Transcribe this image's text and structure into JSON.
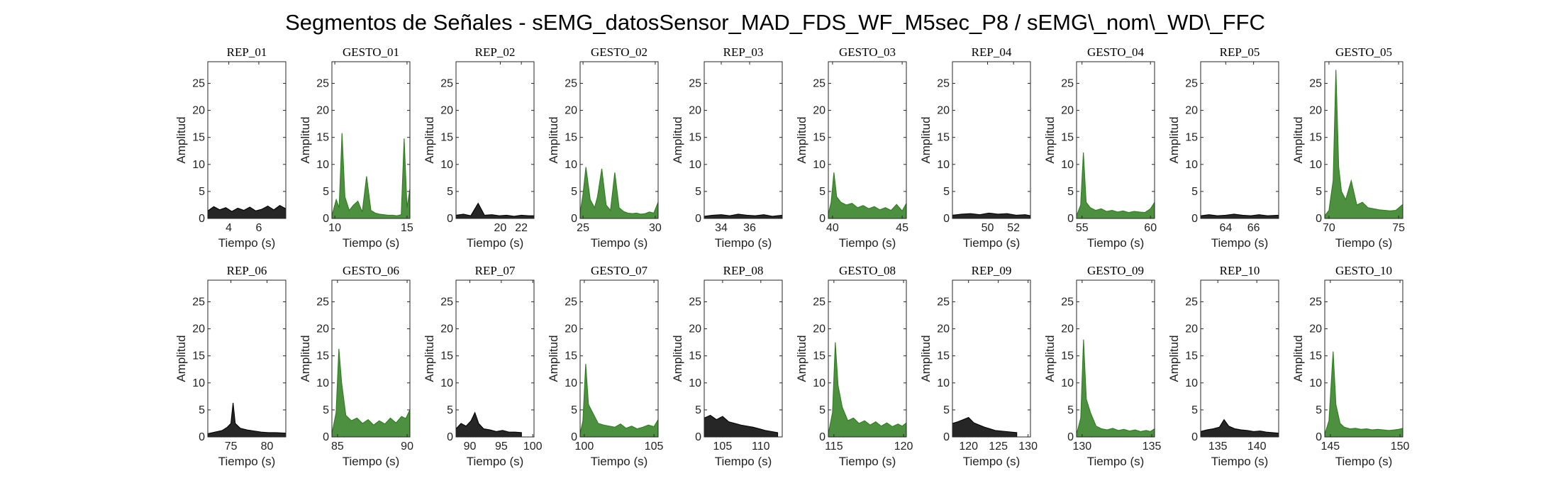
{
  "title": "Segmentos de Señales - sEMG_datosSensor_MAD_FDS_WF_M5sec_P8 / sEMG\\_nom\\_WD\\_FFC",
  "colors": {
    "rep": "#000000",
    "gesto": "#2e7d1e"
  },
  "chart_data": [
    {
      "type": "area",
      "title": "REP_01",
      "kind": "rep",
      "xlabel": "Tiempo (s)",
      "ylabel": "Amplitud",
      "xlim": [
        2.6,
        7.8
      ],
      "xticks": [
        4,
        6
      ],
      "ylim": [
        0,
        29
      ],
      "yticks": [
        0,
        5,
        10,
        15,
        20,
        25
      ],
      "x": [
        2.6,
        3.0,
        3.4,
        3.8,
        4.2,
        4.6,
        5.0,
        5.4,
        5.8,
        6.2,
        6.6,
        7.0,
        7.4,
        7.8
      ],
      "y": [
        1.4,
        2.2,
        1.6,
        2.0,
        1.3,
        1.9,
        1.5,
        2.1,
        1.4,
        1.7,
        2.3,
        1.6,
        2.4,
        1.8
      ]
    },
    {
      "type": "area",
      "title": "GESTO_01",
      "kind": "gesto",
      "xlabel": "Tiempo (s)",
      "ylabel": "Amplitud",
      "xlim": [
        9.8,
        15.2
      ],
      "xticks": [
        10,
        15
      ],
      "ylim": [
        0,
        29
      ],
      "yticks": [
        0,
        5,
        10,
        15,
        20,
        25
      ],
      "x": [
        9.8,
        10.1,
        10.3,
        10.5,
        10.7,
        11.0,
        11.3,
        11.6,
        11.9,
        12.2,
        12.5,
        12.8,
        13.1,
        13.4,
        13.7,
        14.0,
        14.3,
        14.6,
        14.8,
        15.0,
        15.2
      ],
      "y": [
        0.5,
        3.5,
        2.0,
        15.8,
        4.0,
        1.5,
        2.5,
        3.2,
        1.2,
        7.8,
        1.5,
        1.0,
        0.8,
        0.7,
        0.6,
        0.6,
        0.5,
        0.7,
        14.8,
        2.0,
        5.5
      ]
    },
    {
      "type": "area",
      "title": "REP_02",
      "kind": "rep",
      "xlabel": "Tiempo (s)",
      "ylabel": "Amplitud",
      "xlim": [
        15.8,
        23.2
      ],
      "xticks": [
        20,
        22
      ],
      "ylim": [
        0,
        29
      ],
      "yticks": [
        0,
        5,
        10,
        15,
        20,
        25
      ],
      "x": [
        15.8,
        16.5,
        17.2,
        17.9,
        18.5,
        19.2,
        19.9,
        20.6,
        21.3,
        22.0,
        22.7,
        23.2
      ],
      "y": [
        0.6,
        0.8,
        0.5,
        2.8,
        0.6,
        0.7,
        0.5,
        0.6,
        0.4,
        0.6,
        0.5,
        0.5
      ]
    },
    {
      "type": "area",
      "title": "GESTO_02",
      "kind": "gesto",
      "xlabel": "Tiempo (s)",
      "ylabel": "Amplitud",
      "xlim": [
        24.8,
        30.2
      ],
      "xticks": [
        25,
        30
      ],
      "ylim": [
        0,
        29
      ],
      "yticks": [
        0,
        5,
        10,
        15,
        20,
        25
      ],
      "x": [
        24.8,
        25.0,
        25.2,
        25.5,
        25.8,
        26.0,
        26.3,
        26.6,
        26.9,
        27.2,
        27.5,
        27.8,
        28.1,
        28.4,
        28.7,
        29.0,
        29.3,
        29.6,
        29.9,
        30.2
      ],
      "y": [
        1.0,
        4.5,
        9.5,
        3.5,
        2.0,
        4.0,
        9.2,
        2.5,
        1.5,
        8.5,
        2.0,
        1.3,
        1.0,
        0.9,
        1.0,
        0.8,
        0.9,
        1.2,
        1.0,
        3.0
      ]
    },
    {
      "type": "area",
      "title": "REP_03",
      "kind": "rep",
      "xlabel": "Tiempo (s)",
      "ylabel": "Amplitud",
      "xlim": [
        32.8,
        38.3
      ],
      "xticks": [
        34,
        36
      ],
      "ylim": [
        0,
        29
      ],
      "yticks": [
        0,
        5,
        10,
        15,
        20,
        25
      ],
      "x": [
        32.8,
        33.4,
        34.0,
        34.6,
        35.2,
        35.8,
        36.4,
        37.0,
        37.6,
        38.3
      ],
      "y": [
        0.4,
        0.6,
        0.7,
        0.5,
        0.8,
        0.6,
        0.5,
        0.7,
        0.4,
        0.6
      ]
    },
    {
      "type": "area",
      "title": "GESTO_03",
      "kind": "gesto",
      "xlabel": "Tiempo (s)",
      "ylabel": "Amplitud",
      "xlim": [
        39.7,
        45.3
      ],
      "xticks": [
        40,
        45
      ],
      "ylim": [
        0,
        29
      ],
      "yticks": [
        0,
        5,
        10,
        15,
        20,
        25
      ],
      "x": [
        39.7,
        39.9,
        40.1,
        40.3,
        40.6,
        41.0,
        41.4,
        41.8,
        42.2,
        42.6,
        43.0,
        43.4,
        43.8,
        44.2,
        44.6,
        45.0,
        45.3
      ],
      "y": [
        0.8,
        3.0,
        8.5,
        4.0,
        3.0,
        2.5,
        2.8,
        2.0,
        2.4,
        1.8,
        2.2,
        1.6,
        2.0,
        1.5,
        2.6,
        1.4,
        2.8
      ]
    },
    {
      "type": "area",
      "title": "REP_04",
      "kind": "rep",
      "xlabel": "Tiempo (s)",
      "ylabel": "Amplitud",
      "xlim": [
        47.3,
        53.3
      ],
      "xticks": [
        50,
        52
      ],
      "ylim": [
        0,
        29
      ],
      "yticks": [
        0,
        5,
        10,
        15,
        20,
        25
      ],
      "x": [
        47.3,
        48.0,
        48.7,
        49.4,
        50.1,
        50.8,
        51.5,
        52.2,
        52.9,
        53.3
      ],
      "y": [
        0.6,
        0.8,
        0.9,
        0.7,
        1.0,
        0.8,
        0.9,
        0.6,
        0.7,
        0.5
      ]
    },
    {
      "type": "area",
      "title": "GESTO_04",
      "kind": "gesto",
      "xlabel": "Tiempo (s)",
      "ylabel": "Amplitud",
      "xlim": [
        54.6,
        60.3
      ],
      "xticks": [
        55,
        60
      ],
      "ylim": [
        0,
        29
      ],
      "yticks": [
        0,
        5,
        10,
        15,
        20,
        25
      ],
      "x": [
        54.6,
        54.9,
        55.1,
        55.3,
        55.6,
        56.0,
        56.4,
        56.8,
        57.2,
        57.6,
        58.0,
        58.4,
        58.8,
        59.2,
        59.6,
        60.0,
        60.3
      ],
      "y": [
        0.5,
        2.5,
        12.2,
        3.0,
        2.0,
        1.5,
        1.8,
        1.3,
        1.5,
        1.2,
        1.4,
        1.1,
        1.3,
        1.2,
        1.1,
        1.8,
        3.0
      ]
    },
    {
      "type": "area",
      "title": "REP_05",
      "kind": "rep",
      "xlabel": "Tiempo (s)",
      "ylabel": "Amplitud",
      "xlim": [
        62.2,
        67.8
      ],
      "xticks": [
        64,
        66
      ],
      "ylim": [
        0,
        29
      ],
      "yticks": [
        0,
        5,
        10,
        15,
        20,
        25
      ],
      "x": [
        62.2,
        62.8,
        63.4,
        64.0,
        64.6,
        65.2,
        65.8,
        66.4,
        67.0,
        67.8
      ],
      "y": [
        0.5,
        0.7,
        0.5,
        0.6,
        0.8,
        0.6,
        0.5,
        0.7,
        0.5,
        0.6
      ]
    },
    {
      "type": "area",
      "title": "GESTO_05",
      "kind": "gesto",
      "xlabel": "Tiempo (s)",
      "ylabel": "Amplitud",
      "xlim": [
        69.7,
        75.3
      ],
      "xticks": [
        70,
        75
      ],
      "ylim": [
        0,
        29
      ],
      "yticks": [
        0,
        5,
        10,
        15,
        20,
        25
      ],
      "x": [
        69.7,
        70.0,
        70.3,
        70.5,
        70.7,
        70.9,
        71.2,
        71.6,
        72.0,
        72.4,
        72.8,
        73.2,
        73.6,
        74.0,
        74.4,
        74.8,
        75.3
      ],
      "y": [
        0.5,
        1.5,
        7.0,
        27.5,
        9.5,
        5.0,
        3.5,
        7.0,
        2.5,
        3.0,
        2.0,
        1.8,
        1.6,
        1.5,
        1.4,
        1.5,
        2.6
      ]
    },
    {
      "type": "area",
      "title": "REP_06",
      "kind": "rep",
      "xlabel": "Tiempo (s)",
      "ylabel": "Amplitud",
      "xlim": [
        71.8,
        82.6
      ],
      "xticks": [
        75,
        80
      ],
      "ylim": [
        0,
        29
      ],
      "yticks": [
        0,
        5,
        10,
        15,
        20,
        25
      ],
      "x": [
        71.8,
        72.8,
        73.8,
        74.5,
        75.0,
        75.3,
        75.6,
        76.3,
        77.2,
        78.2,
        79.2,
        80.2,
        81.2,
        82.6
      ],
      "y": [
        0.6,
        0.9,
        1.2,
        1.8,
        2.5,
        6.3,
        2.5,
        1.6,
        1.3,
        1.1,
        0.9,
        0.8,
        0.8,
        0.7
      ]
    },
    {
      "type": "area",
      "title": "GESTO_06",
      "kind": "gesto",
      "xlabel": "Tiempo (s)",
      "ylabel": "Amplitud",
      "xlim": [
        84.6,
        90.2
      ],
      "xticks": [
        85,
        90
      ],
      "ylim": [
        0,
        29
      ],
      "yticks": [
        0,
        5,
        10,
        15,
        20,
        25
      ],
      "x": [
        84.6,
        84.9,
        85.1,
        85.3,
        85.6,
        86.0,
        86.4,
        86.8,
        87.2,
        87.6,
        88.0,
        88.4,
        88.8,
        89.2,
        89.6,
        89.9,
        90.2
      ],
      "y": [
        0.6,
        4.5,
        16.3,
        10.0,
        4.0,
        3.0,
        3.5,
        2.5,
        3.2,
        2.2,
        3.0,
        2.4,
        3.5,
        2.6,
        3.8,
        3.4,
        5.0
      ]
    },
    {
      "type": "area",
      "title": "REP_07",
      "kind": "rep",
      "xlabel": "Tiempo (s)",
      "ylabel": "Amplitud",
      "xlim": [
        87.8,
        100.2
      ],
      "xticks": [
        90,
        95,
        100
      ],
      "ylim": [
        0,
        29
      ],
      "yticks": [
        0,
        5,
        10,
        15,
        20,
        25
      ],
      "x": [
        87.8,
        88.6,
        89.4,
        90.2,
        90.8,
        91.4,
        92.2,
        93.2,
        94.2,
        95.2,
        96.2,
        97.2,
        98.2
      ],
      "y": [
        1.5,
        2.5,
        2.0,
        3.0,
        4.5,
        2.5,
        1.5,
        1.3,
        1.0,
        1.2,
        0.9,
        0.9,
        0.8
      ]
    },
    {
      "type": "area",
      "title": "GESTO_07",
      "kind": "gesto",
      "xlabel": "Tiempo (s)",
      "ylabel": "Amplitud",
      "xlim": [
        99.7,
        105.3
      ],
      "xticks": [
        100,
        105
      ],
      "ylim": [
        0,
        29
      ],
      "yticks": [
        0,
        5,
        10,
        15,
        20,
        25
      ],
      "x": [
        99.7,
        99.9,
        100.1,
        100.3,
        100.6,
        101.0,
        101.4,
        101.8,
        102.2,
        102.6,
        103.0,
        103.4,
        103.8,
        104.2,
        104.6,
        105.0,
        105.3
      ],
      "y": [
        0.6,
        3.0,
        13.5,
        6.0,
        4.5,
        2.5,
        2.2,
        2.0,
        1.8,
        2.4,
        1.6,
        2.0,
        1.5,
        1.8,
        2.2,
        1.9,
        3.2
      ]
    },
    {
      "type": "area",
      "title": "REP_08",
      "kind": "rep",
      "xlabel": "Tiempo (s)",
      "ylabel": "Amplitud",
      "xlim": [
        102.6,
        112.8
      ],
      "xticks": [
        105,
        110
      ],
      "ylim": [
        0,
        29
      ],
      "yticks": [
        0,
        5,
        10,
        15,
        20,
        25
      ],
      "x": [
        102.6,
        103.4,
        104.2,
        105.0,
        105.8,
        106.6,
        107.4,
        108.2,
        109.0,
        109.8,
        110.6,
        111.4,
        112.2
      ],
      "y": [
        3.5,
        4.0,
        3.2,
        3.8,
        2.8,
        2.5,
        2.2,
        2.0,
        1.8,
        1.5,
        1.2,
        1.0,
        0.8
      ]
    },
    {
      "type": "area",
      "title": "GESTO_08",
      "kind": "gesto",
      "xlabel": "Tiempo (s)",
      "ylabel": "Amplitud",
      "xlim": [
        114.6,
        120.2
      ],
      "xticks": [
        115,
        120
      ],
      "ylim": [
        0,
        29
      ],
      "yticks": [
        0,
        5,
        10,
        15,
        20,
        25
      ],
      "x": [
        114.6,
        114.9,
        115.1,
        115.3,
        115.6,
        116.0,
        116.4,
        116.8,
        117.2,
        117.6,
        118.0,
        118.4,
        118.8,
        119.2,
        119.6,
        119.9,
        120.2
      ],
      "y": [
        0.6,
        4.5,
        17.5,
        9.5,
        5.5,
        3.0,
        3.5,
        2.5,
        3.0,
        2.2,
        2.8,
        2.0,
        2.6,
        1.9,
        2.4,
        2.0,
        2.6
      ]
    },
    {
      "type": "area",
      "title": "REP_09",
      "kind": "rep",
      "xlabel": "Tiempo (s)",
      "ylabel": "Amplitud",
      "xlim": [
        117.3,
        130.4
      ],
      "xticks": [
        120,
        125,
        130
      ],
      "ylim": [
        0,
        29
      ],
      "yticks": [
        0,
        5,
        10,
        15,
        20,
        25
      ],
      "x": [
        117.3,
        118.2,
        119.1,
        120.0,
        120.9,
        121.8,
        122.7,
        123.6,
        124.5,
        125.4,
        126.3,
        127.2,
        128.1
      ],
      "y": [
        2.5,
        2.8,
        3.2,
        3.6,
        2.6,
        2.2,
        1.8,
        1.5,
        1.2,
        1.1,
        1.0,
        0.9,
        0.8
      ]
    },
    {
      "type": "area",
      "title": "GESTO_09",
      "kind": "gesto",
      "xlabel": "Tiempo (s)",
      "ylabel": "Amplitud",
      "xlim": [
        129.6,
        135.2
      ],
      "xticks": [
        130,
        135
      ],
      "ylim": [
        0,
        29
      ],
      "yticks": [
        0,
        5,
        10,
        15,
        20,
        25
      ],
      "x": [
        129.6,
        129.9,
        130.1,
        130.3,
        130.6,
        131.0,
        131.4,
        131.8,
        132.2,
        132.6,
        133.0,
        133.4,
        133.8,
        134.2,
        134.6,
        134.9,
        135.2
      ],
      "y": [
        0.5,
        3.5,
        18.0,
        7.0,
        4.5,
        2.0,
        1.5,
        1.3,
        1.6,
        1.2,
        1.4,
        1.1,
        1.3,
        1.0,
        1.2,
        1.0,
        1.5
      ]
    },
    {
      "type": "area",
      "title": "REP_10",
      "kind": "rep",
      "xlabel": "Tiempo (s)",
      "ylabel": "Amplitud",
      "xlim": [
        132.8,
        142.8
      ],
      "xticks": [
        135,
        140
      ],
      "ylim": [
        0,
        29
      ],
      "yticks": [
        0,
        5,
        10,
        15,
        20,
        25
      ],
      "x": [
        132.8,
        133.6,
        134.4,
        135.2,
        135.8,
        136.4,
        137.2,
        138.0,
        138.8,
        139.6,
        140.4,
        141.2,
        142.0,
        142.8
      ],
      "y": [
        1.0,
        1.3,
        1.5,
        1.8,
        3.2,
        2.0,
        1.5,
        1.3,
        1.2,
        1.0,
        1.1,
        0.9,
        0.8,
        0.7
      ]
    },
    {
      "type": "area",
      "title": "GESTO_10",
      "kind": "gesto",
      "xlabel": "Tiempo (s)",
      "ylabel": "Amplitud",
      "xlim": [
        144.6,
        150.2
      ],
      "xticks": [
        145,
        150
      ],
      "ylim": [
        0,
        29
      ],
      "yticks": [
        0,
        5,
        10,
        15,
        20,
        25
      ],
      "x": [
        144.6,
        144.9,
        145.2,
        145.4,
        145.7,
        146.0,
        146.4,
        146.8,
        147.2,
        147.6,
        148.0,
        148.4,
        148.8,
        149.2,
        149.6,
        149.9,
        150.2
      ],
      "y": [
        0.5,
        3.0,
        15.8,
        6.0,
        2.5,
        1.8,
        1.5,
        1.6,
        1.4,
        1.5,
        1.3,
        1.4,
        1.3,
        1.2,
        1.3,
        1.4,
        1.6
      ]
    }
  ]
}
